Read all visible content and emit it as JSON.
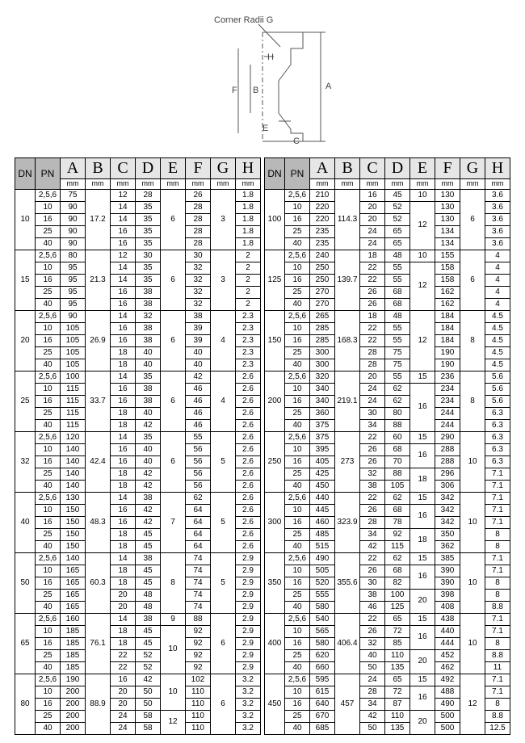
{
  "diagram": {
    "title": "Corner Radii G",
    "labels": [
      "A",
      "B",
      "C",
      "D",
      "E",
      "F",
      "G",
      "H"
    ]
  },
  "headers": {
    "dn": "DN",
    "pn": "PN",
    "letters": [
      "A",
      "B",
      "C",
      "D",
      "E",
      "F",
      "G",
      "H"
    ],
    "unit": "mm"
  },
  "left_groups": [
    {
      "dn": "10",
      "B": "17.2",
      "E": "6",
      "G": "3",
      "rows": [
        {
          "pn": "2,5,6",
          "A": "75",
          "C": "12",
          "D": "28",
          "F": "26",
          "H": "1.8"
        },
        {
          "pn": "10",
          "A": "90",
          "C": "14",
          "D": "35",
          "F": "28",
          "H": "1.8"
        },
        {
          "pn": "16",
          "A": "90",
          "C": "14",
          "D": "35",
          "F": "28",
          "H": "1.8"
        },
        {
          "pn": "25",
          "A": "90",
          "C": "16",
          "D": "35",
          "F": "28",
          "H": "1.8"
        },
        {
          "pn": "40",
          "A": "90",
          "C": "16",
          "D": "35",
          "F": "28",
          "H": "1.8"
        }
      ]
    },
    {
      "dn": "15",
      "B": "21.3",
      "E": "6",
      "G": "3",
      "rows": [
        {
          "pn": "2,5,6",
          "A": "80",
          "C": "12",
          "D": "30",
          "F": "30",
          "H": "2"
        },
        {
          "pn": "10",
          "A": "95",
          "C": "14",
          "D": "35",
          "F": "32",
          "H": "2"
        },
        {
          "pn": "16",
          "A": "95",
          "C": "14",
          "D": "35",
          "F": "32",
          "H": "2"
        },
        {
          "pn": "25",
          "A": "95",
          "C": "16",
          "D": "38",
          "F": "32",
          "H": "2"
        },
        {
          "pn": "40",
          "A": "95",
          "C": "16",
          "D": "38",
          "F": "32",
          "H": "2"
        }
      ]
    },
    {
      "dn": "20",
      "B": "26.9",
      "E": "6",
      "G": "4",
      "rows": [
        {
          "pn": "2,5,6",
          "A": "90",
          "C": "14",
          "D": "32",
          "F": "38",
          "H": "2.3"
        },
        {
          "pn": "10",
          "A": "105",
          "C": "16",
          "D": "38",
          "F": "39",
          "H": "2.3"
        },
        {
          "pn": "16",
          "A": "105",
          "C": "16",
          "D": "38",
          "F": "39",
          "H": "2.3"
        },
        {
          "pn": "25",
          "A": "105",
          "C": "18",
          "D": "40",
          "F": "40",
          "H": "2.3"
        },
        {
          "pn": "40",
          "A": "105",
          "C": "18",
          "D": "40",
          "F": "40",
          "H": "2.3"
        }
      ]
    },
    {
      "dn": "25",
      "B": "33.7",
      "E": "6",
      "G": "4",
      "rows": [
        {
          "pn": "2,5,6",
          "A": "100",
          "C": "14",
          "D": "35",
          "F": "42",
          "H": "2.6"
        },
        {
          "pn": "10",
          "A": "115",
          "C": "16",
          "D": "38",
          "F": "46",
          "H": "2.6"
        },
        {
          "pn": "16",
          "A": "115",
          "C": "16",
          "D": "38",
          "F": "46",
          "H": "2.6"
        },
        {
          "pn": "25",
          "A": "115",
          "C": "18",
          "D": "40",
          "F": "46",
          "H": "2.6"
        },
        {
          "pn": "40",
          "A": "115",
          "C": "18",
          "D": "42",
          "F": "46",
          "H": "2.6"
        }
      ]
    },
    {
      "dn": "32",
      "B": "42.4",
      "E": "6",
      "G": "5",
      "rows": [
        {
          "pn": "2,5,6",
          "A": "120",
          "C": "14",
          "D": "35",
          "F": "55",
          "H": "2.6"
        },
        {
          "pn": "10",
          "A": "140",
          "C": "16",
          "D": "40",
          "F": "56",
          "H": "2.6"
        },
        {
          "pn": "16",
          "A": "140",
          "C": "16",
          "D": "40",
          "F": "56",
          "H": "2.6"
        },
        {
          "pn": "25",
          "A": "140",
          "C": "18",
          "D": "42",
          "F": "56",
          "H": "2.6"
        },
        {
          "pn": "40",
          "A": "140",
          "C": "18",
          "D": "42",
          "F": "56",
          "H": "2.6"
        }
      ]
    },
    {
      "dn": "40",
      "B": "48.3",
      "E": "7",
      "G": "5",
      "rows": [
        {
          "pn": "2,5,6",
          "A": "130",
          "C": "14",
          "D": "38",
          "F": "62",
          "H": "2.6"
        },
        {
          "pn": "10",
          "A": "150",
          "C": "16",
          "D": "42",
          "F": "64",
          "H": "2.6"
        },
        {
          "pn": "16",
          "A": "150",
          "C": "16",
          "D": "42",
          "F": "64",
          "H": "2.6"
        },
        {
          "pn": "25",
          "A": "150",
          "C": "18",
          "D": "45",
          "F": "64",
          "H": "2.6"
        },
        {
          "pn": "40",
          "A": "150",
          "C": "18",
          "D": "45",
          "F": "64",
          "H": "2.6"
        }
      ]
    },
    {
      "dn": "50",
      "B": "60.3",
      "E": "8",
      "G": "5",
      "rows": [
        {
          "pn": "2,5,6",
          "A": "140",
          "C": "14",
          "D": "38",
          "F": "74",
          "H": "2.9"
        },
        {
          "pn": "10",
          "A": "165",
          "C": "18",
          "D": "45",
          "F": "74",
          "H": "2.9"
        },
        {
          "pn": "16",
          "A": "165",
          "C": "18",
          "D": "45",
          "F": "74",
          "H": "2.9"
        },
        {
          "pn": "25",
          "A": "165",
          "C": "20",
          "D": "48",
          "F": "74",
          "H": "2.9"
        },
        {
          "pn": "40",
          "A": "165",
          "C": "20",
          "D": "48",
          "F": "74",
          "H": "2.9"
        }
      ]
    },
    {
      "dn": "65",
      "B": "76.1",
      "E1": "9",
      "E2": "10",
      "G": "6",
      "rows": [
        {
          "pn": "2,5,6",
          "A": "160",
          "C": "14",
          "D": "38",
          "F": "88",
          "H": "2.9",
          "Eidx": 1
        },
        {
          "pn": "10",
          "A": "185",
          "C": "18",
          "D": "45",
          "F": "92",
          "H": "2.9",
          "Eidx": 2
        },
        {
          "pn": "16",
          "A": "185",
          "C": "18",
          "D": "45",
          "F": "92",
          "H": "2.9",
          "Eidx": 2
        },
        {
          "pn": "25",
          "A": "185",
          "C": "22",
          "D": "52",
          "F": "92",
          "H": "2.9",
          "Eidx": 2
        },
        {
          "pn": "40",
          "A": "185",
          "C": "22",
          "D": "52",
          "F": "92",
          "H": "2.9",
          "Eidx": 2
        }
      ]
    },
    {
      "dn": "80",
      "B": "88.9",
      "E1": "10",
      "E2": "12",
      "G": "6",
      "rows": [
        {
          "pn": "2,5,6",
          "A": "190",
          "C": "16",
          "D": "42",
          "F": "102",
          "H": "3.2",
          "Eidx": 1
        },
        {
          "pn": "10",
          "A": "200",
          "C": "20",
          "D": "50",
          "F": "110",
          "H": "3.2",
          "Eidx": 1
        },
        {
          "pn": "16",
          "A": "200",
          "C": "20",
          "D": "50",
          "F": "110",
          "H": "3.2",
          "Eidx": 1
        },
        {
          "pn": "25",
          "A": "200",
          "C": "24",
          "D": "58",
          "F": "110",
          "H": "3.2",
          "Eidx": 2
        },
        {
          "pn": "40",
          "A": "200",
          "C": "24",
          "D": "58",
          "F": "110",
          "H": "3.2",
          "Eidx": 2
        }
      ]
    }
  ],
  "right_groups": [
    {
      "dn": "100",
      "B": "114.3",
      "E1": "10",
      "E2": "12",
      "G": "6",
      "rows": [
        {
          "pn": "2,5,6",
          "A": "210",
          "C": "16",
          "D": "45",
          "F": "130",
          "H": "3.6",
          "Eidx": 1
        },
        {
          "pn": "10",
          "A": "220",
          "C": "20",
          "D": "52",
          "F": "130",
          "H": "3.6",
          "Eidx": 2
        },
        {
          "pn": "16",
          "A": "220",
          "C": "20",
          "D": "52",
          "F": "130",
          "H": "3.6",
          "Eidx": 2
        },
        {
          "pn": "25",
          "A": "235",
          "C": "24",
          "D": "65",
          "F": "134",
          "H": "3.6",
          "Eidx": 2
        },
        {
          "pn": "40",
          "A": "235",
          "C": "24",
          "D": "65",
          "F": "134",
          "H": "3.6",
          "Eidx": 2
        }
      ]
    },
    {
      "dn": "125",
      "B": "139.7",
      "E1": "10",
      "E2": "12",
      "G": "6",
      "rows": [
        {
          "pn": "2,5,6",
          "A": "240",
          "C": "18",
          "D": "48",
          "F": "155",
          "H": "4",
          "Eidx": 1
        },
        {
          "pn": "10",
          "A": "250",
          "C": "22",
          "D": "55",
          "F": "158",
          "H": "4",
          "Eidx": 2
        },
        {
          "pn": "16",
          "A": "250",
          "C": "22",
          "D": "55",
          "F": "158",
          "H": "4",
          "Eidx": 2
        },
        {
          "pn": "25",
          "A": "270",
          "C": "26",
          "D": "68",
          "F": "162",
          "H": "4",
          "Eidx": 2
        },
        {
          "pn": "40",
          "A": "270",
          "C": "26",
          "D": "68",
          "F": "162",
          "H": "4",
          "Eidx": 2
        }
      ]
    },
    {
      "dn": "150",
      "B": "168.3",
      "E": "12",
      "G": "8",
      "rows": [
        {
          "pn": "2,5,6",
          "A": "265",
          "C": "18",
          "D": "48",
          "F": "184",
          "H": "4.5"
        },
        {
          "pn": "10",
          "A": "285",
          "C": "22",
          "D": "55",
          "F": "184",
          "H": "4.5"
        },
        {
          "pn": "16",
          "A": "285",
          "C": "22",
          "D": "55",
          "F": "184",
          "H": "4.5"
        },
        {
          "pn": "25",
          "A": "300",
          "C": "28",
          "D": "75",
          "F": "190",
          "H": "4.5"
        },
        {
          "pn": "40",
          "A": "300",
          "C": "28",
          "D": "75",
          "F": "190",
          "H": "4.5"
        }
      ]
    },
    {
      "dn": "200",
      "B": "219.1",
      "E1": "15",
      "E2": "16",
      "G": "8",
      "rows": [
        {
          "pn": "2,5,6",
          "A": "320",
          "C": "20",
          "D": "55",
          "F": "236",
          "H": "5.6",
          "Eidx": 1
        },
        {
          "pn": "10",
          "A": "340",
          "C": "24",
          "D": "62",
          "F": "234",
          "H": "5.6",
          "Eidx": 2
        },
        {
          "pn": "16",
          "A": "340",
          "C": "24",
          "D": "62",
          "F": "234",
          "H": "5.6",
          "Eidx": 2
        },
        {
          "pn": "25",
          "A": "360",
          "C": "30",
          "D": "80",
          "F": "244",
          "H": "6.3",
          "Eidx": 2
        },
        {
          "pn": "40",
          "A": "375",
          "C": "34",
          "D": "88",
          "F": "244",
          "H": "6.3",
          "Eidx": 2
        }
      ]
    },
    {
      "dn": "250",
      "B": "273",
      "E1": "15",
      "E2": "16",
      "E3": "18",
      "G": "10",
      "rows": [
        {
          "pn": "2,5,6",
          "A": "375",
          "C": "22",
          "D": "60",
          "F": "290",
          "H": "6.3",
          "Eidx": 1
        },
        {
          "pn": "10",
          "A": "395",
          "C": "26",
          "D": "68",
          "F": "288",
          "H": "6.3",
          "Eidx": 2
        },
        {
          "pn": "16",
          "A": "405",
          "C": "26",
          "D": "70",
          "F": "288",
          "H": "6.3",
          "Eidx": 2
        },
        {
          "pn": "25",
          "A": "425",
          "C": "32",
          "D": "88",
          "F": "296",
          "H": "7.1",
          "Eidx": 3
        },
        {
          "pn": "40",
          "A": "450",
          "C": "38",
          "D": "105",
          "F": "306",
          "H": "7.1",
          "Eidx": 3
        }
      ]
    },
    {
      "dn": "300",
      "B": "323.9",
      "E1": "15",
      "E2": "16",
      "E3": "18",
      "G": "10",
      "rows": [
        {
          "pn": "2,5,6",
          "A": "440",
          "C": "22",
          "D": "62",
          "F": "342",
          "H": "7.1",
          "Eidx": 1
        },
        {
          "pn": "10",
          "A": "445",
          "C": "26",
          "D": "68",
          "F": "342",
          "H": "7.1",
          "Eidx": 2
        },
        {
          "pn": "16",
          "A": "460",
          "C": "28",
          "D": "78",
          "F": "342",
          "H": "7.1",
          "Eidx": 2
        },
        {
          "pn": "25",
          "A": "485",
          "C": "34",
          "D": "92",
          "F": "350",
          "H": "8",
          "Eidx": 3
        },
        {
          "pn": "40",
          "A": "515",
          "C": "42",
          "D": "115",
          "F": "362",
          "H": "8",
          "Eidx": 3
        }
      ]
    },
    {
      "dn": "350",
      "B": "355.6",
      "E1": "15",
      "E2": "16",
      "E3": "20",
      "G": "10",
      "rows": [
        {
          "pn": "2,5,6",
          "A": "490",
          "C": "22",
          "D": "62",
          "F": "385",
          "H": "7.1",
          "Eidx": 1
        },
        {
          "pn": "10",
          "A": "505",
          "C": "26",
          "D": "68",
          "F": "390",
          "H": "7.1",
          "Eidx": 2
        },
        {
          "pn": "16",
          "A": "520",
          "C": "30",
          "D": "82",
          "F": "390",
          "H": "8",
          "Eidx": 2
        },
        {
          "pn": "25",
          "A": "555",
          "C": "38",
          "D": "100",
          "F": "398",
          "H": "8",
          "Eidx": 3
        },
        {
          "pn": "40",
          "A": "580",
          "C": "46",
          "D": "125",
          "F": "408",
          "H": "8.8",
          "Eidx": 3
        }
      ]
    },
    {
      "dn": "400",
      "B": "406.4",
      "E1": "15",
      "E2": "16",
      "E3": "20",
      "G": "10",
      "rows": [
        {
          "pn": "2,5,6",
          "A": "540",
          "C": "22",
          "D": "65",
          "F": "438",
          "H": "7.1",
          "Eidx": 1
        },
        {
          "pn": "10",
          "A": "565",
          "C": "26",
          "D": "72",
          "F": "440",
          "H": "7.1",
          "Eidx": 2
        },
        {
          "pn": "16",
          "A": "580",
          "C": "32",
          "D": "85",
          "F": "444",
          "H": "8",
          "Eidx": 2
        },
        {
          "pn": "25",
          "A": "620",
          "C": "40",
          "D": "110",
          "F": "452",
          "H": "8.8",
          "Eidx": 3
        },
        {
          "pn": "40",
          "A": "660",
          "C": "50",
          "D": "135",
          "F": "462",
          "H": "11",
          "Eidx": 3
        }
      ]
    },
    {
      "dn": "450",
      "B": "457",
      "E1": "15",
      "E2": "16",
      "E3": "20",
      "G": "12",
      "rows": [
        {
          "pn": "2,5,6",
          "A": "595",
          "C": "24",
          "D": "65",
          "F": "492",
          "H": "7.1",
          "Eidx": 1
        },
        {
          "pn": "10",
          "A": "615",
          "C": "28",
          "D": "72",
          "F": "488",
          "H": "7.1",
          "Eidx": 2
        },
        {
          "pn": "16",
          "A": "640",
          "C": "34",
          "D": "87",
          "F": "490",
          "H": "8",
          "Eidx": 2
        },
        {
          "pn": "25",
          "A": "670",
          "C": "42",
          "D": "110",
          "F": "500",
          "H": "8.8",
          "Eidx": 3
        },
        {
          "pn": "40",
          "A": "685",
          "C": "50",
          "D": "135",
          "F": "500",
          "H": "12.5",
          "Eidx": 3
        }
      ]
    }
  ]
}
